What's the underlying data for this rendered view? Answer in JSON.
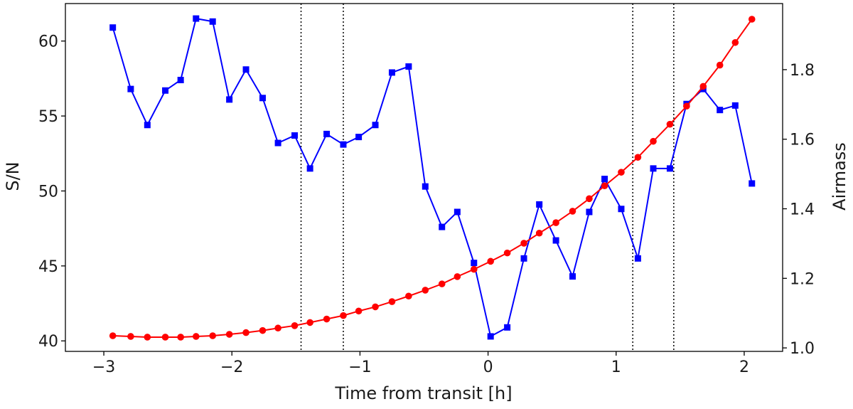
{
  "chart_data": {
    "type": "line",
    "xlabel": "Time from transit [h]",
    "ylabel_left": "S/N",
    "ylabel_right": "Airmass",
    "xlim": [
      -3.3,
      2.3
    ],
    "ylim_left": [
      39.3,
      62.5
    ],
    "ylim_right": [
      0.99,
      1.99
    ],
    "x_ticks": [
      -3,
      -2,
      -1,
      0,
      1,
      2
    ],
    "x_tick_labels": [
      "−3",
      "−2",
      "−1",
      "0",
      "1",
      "2"
    ],
    "y_left_ticks": [
      40,
      45,
      50,
      55,
      60
    ],
    "y_left_tick_labels": [
      "40",
      "45",
      "50",
      "55",
      "60"
    ],
    "y_right_ticks": [
      1.0,
      1.2,
      1.4,
      1.6,
      1.8
    ],
    "y_right_tick_labels": [
      "1.0",
      "1.2",
      "1.4",
      "1.6",
      "1.8"
    ],
    "vertical_lines": [
      -1.46,
      -1.13,
      1.13,
      1.45
    ],
    "grid": false,
    "series": [
      {
        "axis": "left",
        "color": "#0000ff",
        "marker": "square",
        "x": [
          -2.93,
          -2.79,
          -2.66,
          -2.52,
          -2.4,
          -2.28,
          -2.15,
          -2.02,
          -1.89,
          -1.76,
          -1.64,
          -1.51,
          -1.39,
          -1.26,
          -1.13,
          -1.01,
          -0.88,
          -0.75,
          -0.62,
          -0.49,
          -0.36,
          -0.24,
          -0.11,
          0.02,
          0.15,
          0.28,
          0.4,
          0.53,
          0.66,
          0.79,
          0.91,
          1.04,
          1.17,
          1.29,
          1.42,
          1.55,
          1.68,
          1.81,
          1.93,
          2.06
        ],
        "y": [
          60.9,
          56.8,
          54.4,
          56.7,
          57.4,
          61.5,
          61.3,
          56.1,
          58.1,
          56.2,
          53.2,
          53.7,
          51.5,
          53.8,
          53.1,
          53.6,
          54.4,
          57.9,
          58.3,
          50.3,
          47.6,
          48.6,
          45.2,
          40.3,
          40.9,
          45.5,
          49.1,
          46.7,
          44.3,
          48.6,
          50.8,
          48.8,
          45.5,
          51.5,
          51.5,
          55.8,
          56.8,
          55.4,
          55.7,
          50.5
        ]
      },
      {
        "axis": "right",
        "color": "#ff0000",
        "marker": "circle",
        "x": [
          -2.93,
          -2.79,
          -2.66,
          -2.52,
          -2.4,
          -2.28,
          -2.15,
          -2.02,
          -1.89,
          -1.76,
          -1.64,
          -1.51,
          -1.39,
          -1.26,
          -1.13,
          -1.01,
          -0.88,
          -0.75,
          -0.62,
          -0.49,
          -0.36,
          -0.24,
          -0.11,
          0.02,
          0.15,
          0.28,
          0.4,
          0.53,
          0.66,
          0.79,
          0.91,
          1.04,
          1.17,
          1.29,
          1.42,
          1.55,
          1.68,
          1.81,
          1.93,
          2.06
        ],
        "y": [
          1.035,
          1.033,
          1.031,
          1.031,
          1.031,
          1.033,
          1.035,
          1.039,
          1.044,
          1.05,
          1.057,
          1.064,
          1.073,
          1.083,
          1.093,
          1.106,
          1.118,
          1.133,
          1.149,
          1.166,
          1.184,
          1.205,
          1.226,
          1.249,
          1.273,
          1.301,
          1.33,
          1.36,
          1.393,
          1.429,
          1.466,
          1.505,
          1.548,
          1.594,
          1.643,
          1.695,
          1.752,
          1.813,
          1.878,
          1.945
        ]
      }
    ]
  }
}
